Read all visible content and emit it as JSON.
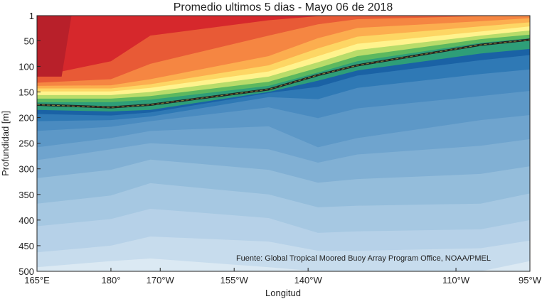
{
  "chart_data": {
    "type": "heatmap",
    "title": "Promedio ultimos 5 dias - Mayo 06 de 2018",
    "xlabel": "Longitud",
    "ylabel": "Profundidad [m]",
    "source": "Fuente: Global Tropical Moored Buoy Array Program Office, NOAA/PMEL",
    "x_ticks": [
      {
        "value": 165,
        "label": "165°E"
      },
      {
        "value": 180,
        "label": "180°"
      },
      {
        "value": 190,
        "label": "170°W"
      },
      {
        "value": 205,
        "label": "155°W"
      },
      {
        "value": 220,
        "label": "140°W"
      },
      {
        "value": 250,
        "label": "110°W"
      },
      {
        "value": 265,
        "label": "95°W"
      }
    ],
    "y_ticks": [
      1,
      50,
      100,
      150,
      200,
      250,
      300,
      350,
      400,
      450,
      500
    ],
    "xlim": [
      165,
      265
    ],
    "ylim": [
      500,
      1
    ],
    "stations": [
      165,
      180,
      188,
      212,
      222,
      230,
      255,
      265
    ],
    "thermocline_depth": [
      175,
      180,
      175,
      145,
      117,
      98,
      58,
      48
    ],
    "isotherm_depths": [
      [
        492,
        480,
        475,
        492,
        500,
        500,
        500,
        480
      ],
      [
        463,
        450,
        432,
        442,
        460,
        460,
        455,
        440
      ],
      [
        412,
        398,
        378,
        396,
        425,
        422,
        418,
        400
      ],
      [
        368,
        352,
        328,
        350,
        375,
        372,
        368,
        348
      ],
      [
        318,
        302,
        282,
        302,
        327,
        320,
        310,
        295
      ],
      [
        283,
        262,
        250,
        262,
        288,
        272,
        255,
        242
      ],
      [
        258,
        240,
        226,
        217,
        258,
        240,
        205,
        195
      ],
      [
        226,
        218,
        207,
        180,
        201,
        182,
        158,
        148
      ],
      [
        207,
        205,
        198,
        160,
        164,
        142,
        115,
        106
      ],
      [
        193,
        196,
        190,
        152,
        140,
        118,
        88,
        78
      ],
      [
        185,
        188,
        185,
        150,
        128,
        108,
        75,
        66
      ],
      [
        170,
        170,
        165,
        138,
        112,
        90,
        54,
        45
      ],
      [
        163,
        163,
        158,
        130,
        103,
        80,
        47,
        38
      ],
      [
        156,
        156,
        150,
        120,
        92,
        68,
        40,
        30
      ],
      [
        149,
        149,
        142,
        110,
        80,
        56,
        32,
        22
      ],
      [
        143,
        143,
        135,
        98,
        65,
        42,
        22,
        14
      ],
      [
        138,
        137,
        125,
        80,
        45,
        25,
        12,
        6
      ],
      [
        132,
        125,
        95,
        40,
        18,
        8,
        2,
        1
      ],
      [
        120,
        90,
        40,
        10,
        2,
        1,
        1,
        1
      ]
    ],
    "band_colors": [
      "#dbe9f3",
      "#c7dced",
      "#b6d1e8",
      "#a6c8e2",
      "#94bddb",
      "#81b0d4",
      "#6fa4ce",
      "#5d98c7",
      "#4a8bc0",
      "#2f79b5",
      "#1a62a5",
      "#2e9e78",
      "#5cb85f",
      "#b8dc6a",
      "#fff38d",
      "#fdd664",
      "#fcae4f",
      "#f58642",
      "#e85a36",
      "#d6282c",
      "#b8202a"
    ],
    "grid": false
  }
}
